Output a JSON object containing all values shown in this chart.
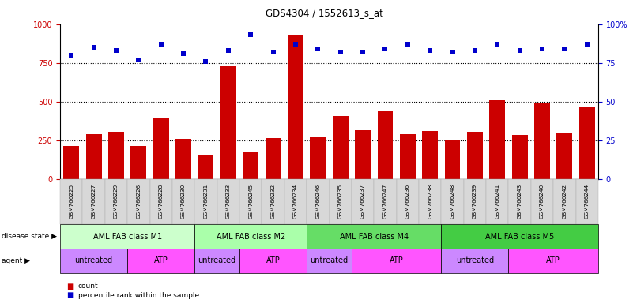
{
  "title": "GDS4304 / 1552613_s_at",
  "samples": [
    "GSM766225",
    "GSM766227",
    "GSM766229",
    "GSM766226",
    "GSM766228",
    "GSM766230",
    "GSM766231",
    "GSM766233",
    "GSM766245",
    "GSM766232",
    "GSM766234",
    "GSM766246",
    "GSM766235",
    "GSM766237",
    "GSM766247",
    "GSM766236",
    "GSM766238",
    "GSM766248",
    "GSM766239",
    "GSM766241",
    "GSM766243",
    "GSM766240",
    "GSM766242",
    "GSM766244"
  ],
  "counts": [
    210,
    290,
    305,
    210,
    390,
    260,
    155,
    730,
    170,
    265,
    930,
    270,
    405,
    315,
    435,
    290,
    310,
    255,
    305,
    510,
    285,
    495,
    295,
    460
  ],
  "percentiles": [
    80,
    85,
    83,
    77,
    87,
    81,
    76,
    83,
    93,
    82,
    87,
    84,
    82,
    82,
    84,
    87,
    83,
    82,
    83,
    87,
    83,
    84,
    84,
    87
  ],
  "disease_state_groups": [
    {
      "label": "AML FAB class M1",
      "start": 0,
      "end": 6,
      "color": "#ccffcc"
    },
    {
      "label": "AML FAB class M2",
      "start": 6,
      "end": 11,
      "color": "#aaffaa"
    },
    {
      "label": "AML FAB class M4",
      "start": 11,
      "end": 17,
      "color": "#66dd66"
    },
    {
      "label": "AML FAB class M5",
      "start": 17,
      "end": 24,
      "color": "#44cc44"
    }
  ],
  "agent_groups": [
    {
      "label": "untreated",
      "start": 0,
      "end": 3,
      "color": "#cc88ff"
    },
    {
      "label": "ATP",
      "start": 3,
      "end": 6,
      "color": "#ff55ff"
    },
    {
      "label": "untreated",
      "start": 6,
      "end": 8,
      "color": "#cc88ff"
    },
    {
      "label": "ATP",
      "start": 8,
      "end": 11,
      "color": "#ff55ff"
    },
    {
      "label": "untreated",
      "start": 11,
      "end": 13,
      "color": "#cc88ff"
    },
    {
      "label": "ATP",
      "start": 13,
      "end": 17,
      "color": "#ff55ff"
    },
    {
      "label": "untreated",
      "start": 17,
      "end": 20,
      "color": "#cc88ff"
    },
    {
      "label": "ATP",
      "start": 20,
      "end": 24,
      "color": "#ff55ff"
    }
  ],
  "bar_color": "#cc0000",
  "dot_color": "#0000cc",
  "ylim_left": [
    0,
    1000
  ],
  "ylim_right": [
    0,
    100
  ],
  "yticks_left": [
    0,
    250,
    500,
    750,
    1000
  ],
  "yticks_right": [
    0,
    25,
    50,
    75,
    100
  ],
  "ytick_labels_right": [
    "0",
    "25",
    "50",
    "75",
    "100%"
  ],
  "hline_values": [
    250,
    500,
    750
  ],
  "disease_state_label": "disease state",
  "agent_label": "agent",
  "xtick_bg": "#d8d8d8",
  "xtick_border": "#aaaaaa"
}
